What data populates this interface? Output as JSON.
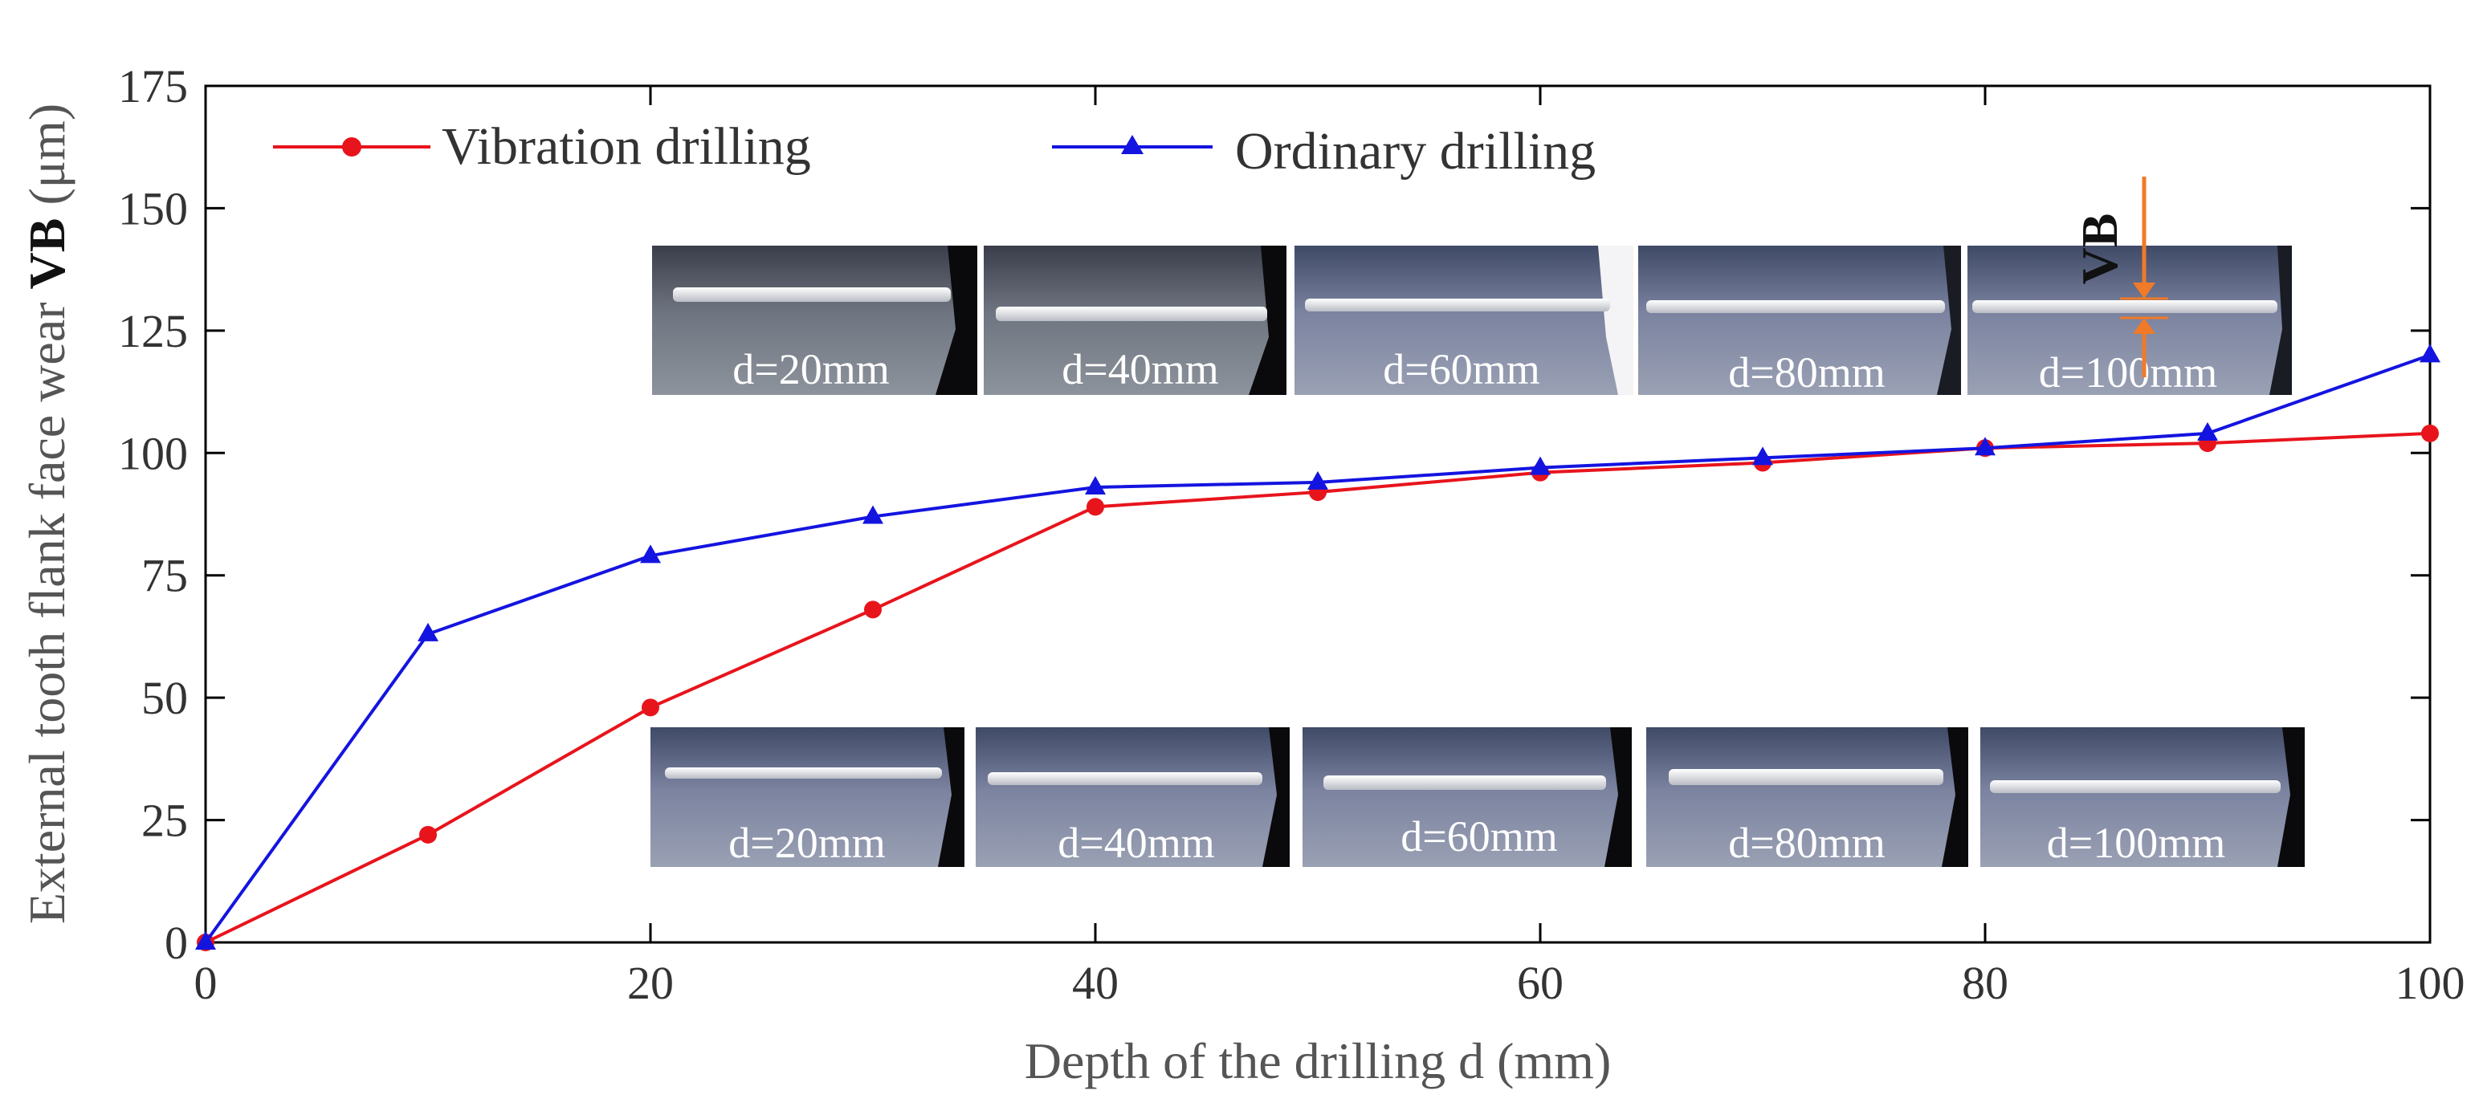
{
  "chart_data": {
    "type": "line",
    "xlabel": "Depth of the drilling d (mm)",
    "ylabel_prefix": "External tooth flank face wear ",
    "ylabel_bold": "VB",
    "ylabel_suffix": " (μm)",
    "xlim": [
      0,
      100
    ],
    "ylim": [
      0,
      175
    ],
    "xticks": [
      0,
      20,
      40,
      60,
      80,
      100
    ],
    "yticks": [
      0,
      25,
      50,
      75,
      100,
      125,
      150,
      175
    ],
    "grid": false,
    "legend_position": "top-left",
    "x": [
      0,
      10,
      20,
      30,
      40,
      50,
      60,
      70,
      80,
      90,
      100
    ],
    "series": [
      {
        "name": "Vibration drilling",
        "color": "#e8141c",
        "marker": "circle",
        "values": [
          0,
          22,
          48,
          68,
          89,
          92,
          96,
          98,
          101,
          102,
          104
        ]
      },
      {
        "name": "Ordinary drilling",
        "color": "#1414e0",
        "marker": "triangle",
        "values": [
          0,
          63,
          79,
          87,
          93,
          94,
          97,
          99,
          101,
          104,
          120
        ]
      }
    ],
    "insets": {
      "top_row": [
        "d=20mm",
        "d=40mm",
        "d=60mm",
        "d=80mm",
        "d=100mm"
      ],
      "bottom_row": [
        "d=20mm",
        "d=40mm",
        "d=60mm",
        "d=80mm",
        "d=100mm"
      ],
      "vb_marker_label": "VB",
      "vb_marker_color": "#f07a28"
    }
  }
}
